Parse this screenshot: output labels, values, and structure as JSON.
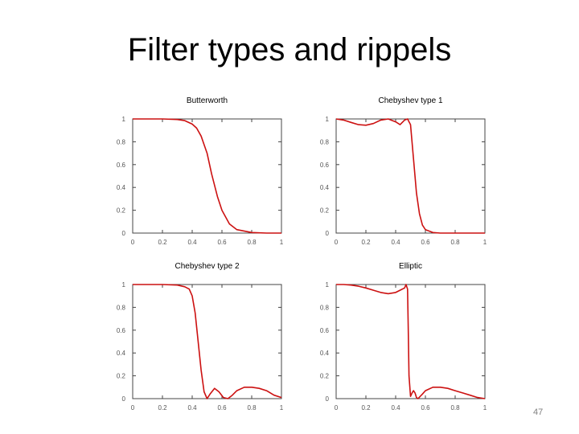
{
  "slide": {
    "title": "Filter types and rippels",
    "page_number": "47"
  },
  "chart_data": [
    {
      "type": "line",
      "title": "Butterworth",
      "x": [
        0,
        0.1,
        0.2,
        0.3,
        0.35,
        0.4,
        0.43,
        0.46,
        0.5,
        0.53,
        0.57,
        0.6,
        0.65,
        0.7,
        0.8,
        0.9,
        1.0
      ],
      "y": [
        1,
        1,
        1,
        0.995,
        0.985,
        0.955,
        0.92,
        0.85,
        0.7,
        0.52,
        0.32,
        0.2,
        0.08,
        0.03,
        0.005,
        0,
        0
      ],
      "xlim": [
        0,
        1
      ],
      "ylim": [
        0,
        1
      ],
      "xticks": [
        "0",
        "0.2",
        "0.4",
        "0.6",
        "0.8",
        "1"
      ],
      "yticks": [
        "0",
        "0.2",
        "0.4",
        "0.6",
        "0.8",
        "1"
      ],
      "color": "#cc1111"
    },
    {
      "type": "line",
      "title": "Chebyshev type 1",
      "x": [
        0,
        0.05,
        0.1,
        0.15,
        0.2,
        0.25,
        0.3,
        0.35,
        0.4,
        0.43,
        0.46,
        0.48,
        0.5,
        0.52,
        0.54,
        0.56,
        0.58,
        0.6,
        0.65,
        0.7,
        0.8,
        1.0
      ],
      "y": [
        1,
        0.99,
        0.97,
        0.95,
        0.945,
        0.96,
        0.99,
        1.0,
        0.975,
        0.95,
        0.99,
        1.0,
        0.95,
        0.65,
        0.35,
        0.17,
        0.07,
        0.03,
        0.005,
        0,
        0,
        0
      ],
      "xlim": [
        0,
        1
      ],
      "ylim": [
        0,
        1
      ],
      "xticks": [
        "0",
        "0.2",
        "0.4",
        "0.6",
        "0.8",
        "1"
      ],
      "yticks": [
        "0",
        "0.2",
        "0.4",
        "0.6",
        "0.8",
        "1"
      ],
      "color": "#cc1111"
    },
    {
      "type": "line",
      "title": "Chebyshev type 2",
      "x": [
        0,
        0.1,
        0.2,
        0.3,
        0.35,
        0.38,
        0.4,
        0.42,
        0.44,
        0.46,
        0.48,
        0.5,
        0.52,
        0.55,
        0.58,
        0.61,
        0.64,
        0.67,
        0.7,
        0.75,
        0.8,
        0.85,
        0.9,
        0.95,
        1.0
      ],
      "y": [
        1,
        1,
        1,
        0.995,
        0.98,
        0.96,
        0.9,
        0.75,
        0.5,
        0.25,
        0.06,
        0,
        0.04,
        0.09,
        0.06,
        0.01,
        0,
        0.03,
        0.07,
        0.1,
        0.1,
        0.09,
        0.07,
        0.03,
        0.01
      ],
      "xlim": [
        0,
        1
      ],
      "ylim": [
        0,
        1
      ],
      "xticks": [
        "0",
        "0.2",
        "0.4",
        "0.6",
        "0.8",
        "1"
      ],
      "yticks": [
        "0",
        "0.2",
        "0.4",
        "0.6",
        "0.8",
        "1"
      ],
      "color": "#cc1111"
    },
    {
      "type": "line",
      "title": "Elliptic",
      "x": [
        0,
        0.05,
        0.1,
        0.15,
        0.2,
        0.25,
        0.3,
        0.35,
        0.4,
        0.43,
        0.46,
        0.47,
        0.48,
        0.485,
        0.49,
        0.5,
        0.51,
        0.52,
        0.53,
        0.54,
        0.55,
        0.58,
        0.6,
        0.65,
        0.7,
        0.75,
        0.8,
        0.85,
        0.9,
        0.95,
        1.0
      ],
      "y": [
        1,
        1,
        0.995,
        0.985,
        0.97,
        0.95,
        0.93,
        0.92,
        0.93,
        0.95,
        0.97,
        1.0,
        0.96,
        0.6,
        0.2,
        0.02,
        0.05,
        0.07,
        0.05,
        0.01,
        0,
        0.04,
        0.07,
        0.1,
        0.1,
        0.09,
        0.07,
        0.05,
        0.03,
        0.01,
        0
      ],
      "xlim": [
        0,
        1
      ],
      "ylim": [
        0,
        1
      ],
      "xticks": [
        "0",
        "0.2",
        "0.4",
        "0.6",
        "0.8",
        "1"
      ],
      "yticks": [
        "0",
        "0.2",
        "0.4",
        "0.6",
        "0.8",
        "1"
      ],
      "color": "#cc1111"
    }
  ]
}
